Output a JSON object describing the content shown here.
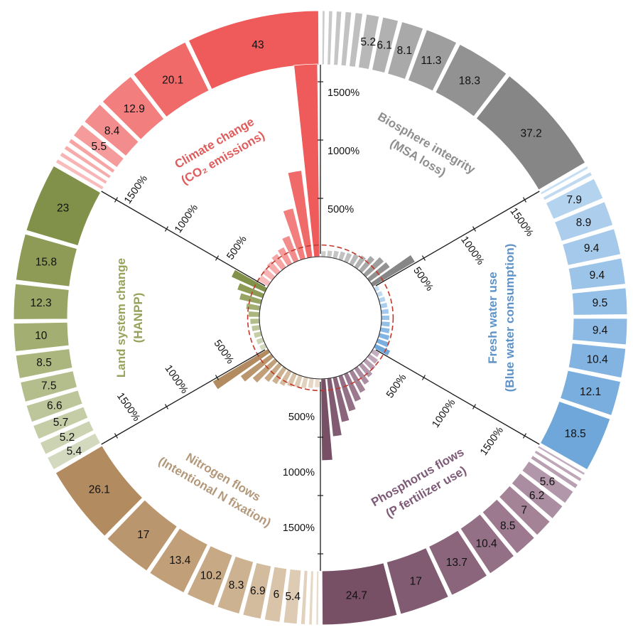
{
  "chart_data": {
    "type": "bar",
    "layout": "circular-polar",
    "description": "Circular planetary-boundary style figure: outer donut ring shows each sector's share segments (%), inner radial bars show transgression level (%) per segment; red dashed circle marks the 100% boundary reference.",
    "radial_axis": {
      "ticks": [
        "500%",
        "1000%",
        "1500%"
      ],
      "tick_values": [
        500,
        1000,
        1500
      ],
      "boundary_reference_pct": 100,
      "max_pct": 1650
    },
    "sectors": [
      {
        "name": "Climate change",
        "subtitle": "(CO₂ emissions)",
        "label_color": "#e05b5b",
        "start_deg": 300,
        "segments": [
          {
            "share": 2.5,
            "label": "",
            "color": "#f8bcbc"
          },
          {
            "share": 2.5,
            "label": "",
            "color": "#f8b4b4"
          },
          {
            "share": 2.5,
            "label": "",
            "color": "#f7acac"
          },
          {
            "share": 2.6,
            "label": "",
            "color": "#f6a4a4"
          },
          {
            "share": 5.5,
            "label": "5.5",
            "color": "#f59b9b"
          },
          {
            "share": 8.4,
            "label": "8.4",
            "color": "#f38d8d"
          },
          {
            "share": 12.9,
            "label": "12.9",
            "color": "#f27e7e"
          },
          {
            "share": 20.1,
            "label": "20.1",
            "color": "#f06a6a"
          },
          {
            "share": 43,
            "label": "43",
            "color": "#ef5a5a"
          }
        ],
        "bars_pct": [
          100,
          110,
          120,
          140,
          160,
          230,
          445,
          750,
          1700
        ]
      },
      {
        "name": "Biosphere integrity",
        "subtitle": "(MSA loss)",
        "label_color": "#8e8e8e",
        "start_deg": 0,
        "segments": [
          {
            "share": 2.0,
            "label": "",
            "color": "#cccccc"
          },
          {
            "share": 2.4,
            "label": "",
            "color": "#c9c9c9"
          },
          {
            "share": 2.8,
            "label": "",
            "color": "#c5c5c5"
          },
          {
            "share": 3.1,
            "label": "",
            "color": "#c2c2c2"
          },
          {
            "share": 3.5,
            "label": "",
            "color": "#bfbfbf"
          },
          {
            "share": 5.2,
            "label": "5.2",
            "color": "#b8b8b8"
          },
          {
            "share": 6.1,
            "label": "6.1",
            "color": "#b1b1b1"
          },
          {
            "share": 8.1,
            "label": "8.1",
            "color": "#a9a9a9"
          },
          {
            "share": 11.3,
            "label": "11.3",
            "color": "#9e9e9e"
          },
          {
            "share": 18.3,
            "label": "18.3",
            "color": "#929292"
          },
          {
            "share": 37.2,
            "label": "37.2",
            "color": "#868686"
          }
        ],
        "bars_pct": [
          50,
          58,
          66,
          74,
          82,
          100,
          120,
          160,
          205,
          215,
          420
        ]
      },
      {
        "name": "Fresh water use",
        "subtitle": "(Blue water consumption)",
        "label_color": "#5f93c8",
        "start_deg": 60,
        "segments": [
          {
            "share": 2.1,
            "label": "",
            "color": "#c6def3"
          },
          {
            "share": 2.4,
            "label": "",
            "color": "#bfd9f1"
          },
          {
            "share": 7.9,
            "label": "7.9",
            "color": "#b4d3ee"
          },
          {
            "share": 8.9,
            "label": "8.9",
            "color": "#accEec"
          },
          {
            "share": 9.4,
            "label": "9.4",
            "color": "#a4c9ea"
          },
          {
            "share": 9.4,
            "label": "9.4",
            "color": "#9cc4e8"
          },
          {
            "share": 9.5,
            "label": "9.5",
            "color": "#94bfe6"
          },
          {
            "share": 9.4,
            "label": "9.4",
            "color": "#8cbae4"
          },
          {
            "share": 10.4,
            "label": "10.4",
            "color": "#83b4e1"
          },
          {
            "share": 12.1,
            "label": "12.1",
            "color": "#7aaede"
          },
          {
            "share": 18.5,
            "label": "18.5",
            "color": "#6fa7db"
          }
        ],
        "bars_pct": [
          40,
          48,
          55,
          60,
          65,
          70,
          75,
          80,
          90,
          105,
          140
        ]
      },
      {
        "name": "Phosphorus flows",
        "subtitle": "(P fertilizer use)",
        "label_color": "#7e5a78",
        "start_deg": 120,
        "segments": [
          {
            "share": 2.0,
            "label": "",
            "color": "#c3adbe"
          },
          {
            "share": 2.3,
            "label": "",
            "color": "#bea6b8"
          },
          {
            "share": 2.6,
            "label": "",
            "color": "#b99fb2"
          },
          {
            "share": 5.6,
            "label": "5.6",
            "color": "#b296a9"
          },
          {
            "share": 6.2,
            "label": "6.2",
            "color": "#ab8da1"
          },
          {
            "share": 7,
            "label": "7",
            "color": "#a48397"
          },
          {
            "share": 8.5,
            "label": "8.5",
            "color": "#9c798e"
          },
          {
            "share": 10.4,
            "label": "10.4",
            "color": "#937085"
          },
          {
            "share": 13.7,
            "label": "13.7",
            "color": "#8a657b"
          },
          {
            "share": 17,
            "label": "17",
            "color": "#815b71"
          },
          {
            "share": 24.7,
            "label": "24.7",
            "color": "#775066"
          }
        ],
        "bars_pct": [
          70,
          90,
          110,
          134,
          165,
          207,
          256,
          317,
          390,
          500,
          700
        ]
      },
      {
        "name": "Nitrogen flows",
        "subtitle": "(Intentional N fixation)",
        "label_color": "#b4987a",
        "start_deg": 180,
        "segments": [
          {
            "share": 2.0,
            "label": "",
            "color": "#e9dccc"
          },
          {
            "share": 2.2,
            "label": "",
            "color": "#e6d7c5"
          },
          {
            "share": 2.5,
            "label": "",
            "color": "#e2d1bd"
          },
          {
            "share": 5.4,
            "label": "5.4",
            "color": "#decbb4"
          },
          {
            "share": 6,
            "label": "6",
            "color": "#d9c3a9"
          },
          {
            "share": 6.9,
            "label": "6.9",
            "color": "#d3bb9d"
          },
          {
            "share": 8.3,
            "label": "8.3",
            "color": "#cdb292"
          },
          {
            "share": 10.2,
            "label": "10.2",
            "color": "#c7a986"
          },
          {
            "share": 13.4,
            "label": "13.4",
            "color": "#c09f79"
          },
          {
            "share": 17,
            "label": "17",
            "color": "#ba966e"
          },
          {
            "share": 26.1,
            "label": "26.1",
            "color": "#b28b60"
          }
        ],
        "bars_pct": [
          75,
          85,
          95,
          105,
          120,
          140,
          160,
          185,
          255,
          325,
          550
        ]
      },
      {
        "name": "Land system change",
        "subtitle": "(HANPP)",
        "label_color": "#97a25b",
        "start_deg": 240,
        "segments": [
          {
            "share": 5.4,
            "label": "5.4",
            "color": "#d3d9bf"
          },
          {
            "share": 5.2,
            "label": "5.2",
            "color": "#ccd3b3"
          },
          {
            "share": 5.7,
            "label": "5.7",
            "color": "#c5cda7"
          },
          {
            "share": 6.6,
            "label": "6.6",
            "color": "#bdc69a"
          },
          {
            "share": 7.5,
            "label": "7.5",
            "color": "#b4be8c"
          },
          {
            "share": 8.5,
            "label": "8.5",
            "color": "#abb67f"
          },
          {
            "share": 10,
            "label": "10",
            "color": "#a2ae72"
          },
          {
            "share": 12.3,
            "label": "12.3",
            "color": "#98a565"
          },
          {
            "share": 15.8,
            "label": "15.8",
            "color": "#8d9b57"
          },
          {
            "share": 23,
            "label": "23",
            "color": "#81914a"
          }
        ],
        "bars_pct": [
          55,
          60,
          65,
          72,
          80,
          95,
          120,
          190,
          230,
          317
        ]
      }
    ],
    "style": {
      "boundary_circle_color": "#c0392b",
      "axis_line_color": "#1a1a1a",
      "segment_gap_color": "#ffffff"
    }
  }
}
